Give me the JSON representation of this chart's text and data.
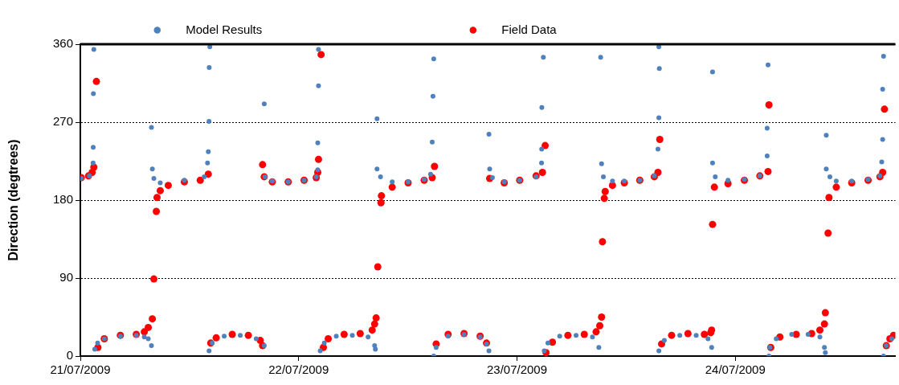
{
  "chart_data": {
    "type": "scatter",
    "ylabel": "Direction (degtrees)",
    "xlim": [
      "2009-07-21T00:00",
      "2009-07-24T17:36"
    ],
    "xticks": [
      {
        "value": "2009-07-21",
        "label": "21/07/2009"
      },
      {
        "value": "2009-07-22",
        "label": "22/07/2009"
      },
      {
        "value": "2009-07-23",
        "label": "23/07/2009"
      },
      {
        "value": "2009-07-24",
        "label": "24/07/2009"
      }
    ],
    "ylim": [
      0,
      360
    ],
    "yticks": [
      0,
      90,
      180,
      270,
      360
    ],
    "grid": "y",
    "legend": "top",
    "marker": "circle",
    "series": [
      {
        "name": "Model Results",
        "color": "#4f81bd",
        "x": [
          "2009-07-21T00:06",
          "2009-07-21T01:00",
          "2009-07-21T01:24",
          "2009-07-21T01:25",
          "2009-07-21T01:26",
          "2009-07-21T01:29",
          "2009-07-21T01:35",
          "2009-07-21T01:54",
          "2009-07-21T02:38",
          "2009-07-21T04:24",
          "2009-07-21T06:09",
          "2009-07-21T07:02",
          "2009-07-21T07:28",
          "2009-07-21T07:49",
          "2009-07-21T07:49",
          "2009-07-21T07:55",
          "2009-07-21T08:05",
          "2009-07-21T08:47",
          "2009-07-21T11:26",
          "2009-07-21T13:37",
          "2009-07-21T13:59",
          "2009-07-21T14:04",
          "2009-07-21T14:09",
          "2009-07-21T14:10",
          "2009-07-21T14:14",
          "2009-07-21T14:09",
          "2009-07-21T14:30",
          "2009-07-21T15:49",
          "2009-07-21T17:35",
          "2009-07-21T19:20",
          "2009-07-21T20:13",
          "2009-07-21T20:13",
          "2009-07-21T20:18",
          "2009-07-21T21:06",
          "2009-07-21T22:51",
          "2009-07-22T00:36",
          "2009-07-22T01:56",
          "2009-07-22T02:06",
          "2009-07-22T02:06",
          "2009-07-22T02:11",
          "2009-07-22T02:11",
          "2009-07-22T02:22",
          "2009-07-22T02:49",
          "2009-07-22T04:08",
          "2009-07-22T05:54",
          "2009-07-22T07:38",
          "2009-07-22T08:21",
          "2009-07-22T08:26",
          "2009-07-22T08:37",
          "2009-07-22T08:37",
          "2009-07-22T09:00",
          "2009-07-22T10:17",
          "2009-07-22T12:02",
          "2009-07-22T13:48",
          "2009-07-22T14:30",
          "2009-07-22T14:41",
          "2009-07-22T14:46",
          "2009-07-22T14:51",
          "2009-07-22T14:51",
          "2009-07-22T15:07",
          "2009-07-22T16:26",
          "2009-07-22T18:11",
          "2009-07-22T19:57",
          "2009-07-22T20:39",
          "2009-07-22T20:55",
          "2009-07-22T20:55",
          "2009-07-22T21:00",
          "2009-07-22T21:18",
          "2009-07-22T22:36",
          "2009-07-23T00:18",
          "2009-07-23T02:06",
          "2009-07-23T02:42",
          "2009-07-23T02:43",
          "2009-07-23T02:44",
          "2009-07-23T02:54",
          "2009-07-23T03:00",
          "2009-07-23T03:24",
          "2009-07-23T04:42",
          "2009-07-23T06:30",
          "2009-07-23T08:18",
          "2009-07-23T09:00",
          "2009-07-23T09:12",
          "2009-07-23T09:18",
          "2009-07-23T09:30",
          "2009-07-23T10:30",
          "2009-07-23T11:48",
          "2009-07-23T13:30",
          "2009-07-23T15:06",
          "2009-07-23T15:30",
          "2009-07-23T15:36",
          "2009-07-23T15:39",
          "2009-07-23T15:36",
          "2009-07-23T15:36",
          "2009-07-23T16:12",
          "2009-07-23T17:54",
          "2009-07-23T19:42",
          "2009-07-23T21:00",
          "2009-07-23T21:24",
          "2009-07-23T21:30",
          "2009-07-23T21:30",
          "2009-07-23T21:48",
          "2009-07-23T23:12",
          "2009-07-24T01:00",
          "2009-07-24T02:42",
          "2009-07-24T03:30",
          "2009-07-24T03:30",
          "2009-07-24T03:36",
          "2009-07-24T03:42",
          "2009-07-24T03:48",
          "2009-07-24T04:30",
          "2009-07-24T06:12",
          "2009-07-24T08:00",
          "2009-07-24T09:18",
          "2009-07-24T09:48",
          "2009-07-24T09:54",
          "2009-07-24T10:00",
          "2009-07-24T10:00",
          "2009-07-24T10:24",
          "2009-07-24T11:06",
          "2009-07-24T12:48",
          "2009-07-24T14:36",
          "2009-07-24T15:54",
          "2009-07-24T16:06",
          "2009-07-24T16:12",
          "2009-07-24T16:12",
          "2009-07-24T16:18",
          "2009-07-24T16:18",
          "2009-07-24T16:36",
          "2009-07-24T17:12"
        ],
        "values": [
          205,
          208,
          223,
          241,
          303,
          354,
          8,
          15,
          20,
          23,
          24,
          22,
          20,
          12,
          264,
          216,
          205,
          200,
          203,
          207,
          223,
          236,
          271,
          333,
          357,
          6,
          15,
          23,
          24,
          20,
          12,
          291,
          207,
          202,
          201,
          203,
          207,
          215,
          246,
          312,
          354,
          6,
          15,
          23,
          24,
          22,
          12,
          8,
          274,
          216,
          207,
          201,
          201,
          204,
          210,
          247,
          300,
          343,
          0,
          10,
          23,
          25,
          22,
          14,
          6,
          256,
          216,
          206,
          201,
          203,
          207,
          223,
          239,
          287,
          345,
          6,
          15,
          23,
          24,
          22,
          10,
          345,
          222,
          207,
          202,
          202,
          203,
          208,
          239,
          275,
          332,
          357,
          6,
          18,
          24,
          24,
          20,
          10,
          328,
          223,
          207,
          203,
          204,
          208,
          231,
          263,
          336,
          0,
          10,
          20,
          25,
          25,
          22,
          10,
          4,
          255,
          216,
          207,
          202,
          202,
          204,
          208,
          224,
          250,
          308,
          346,
          0,
          12,
          20
        ]
      },
      {
        "name": "Field Data",
        "color": "#ff0000",
        "x": [
          "2009-07-21T00:06",
          "2009-07-21T00:54",
          "2009-07-21T01:18",
          "2009-07-21T01:29",
          "2009-07-21T01:46",
          "2009-07-21T01:56",
          "2009-07-21T02:38",
          "2009-07-21T04:24",
          "2009-07-21T06:09",
          "2009-07-21T07:02",
          "2009-07-21T07:28",
          "2009-07-21T07:55",
          "2009-07-21T08:05",
          "2009-07-21T08:21",
          "2009-07-21T08:26",
          "2009-07-21T08:47",
          "2009-07-21T09:40",
          "2009-07-21T11:26",
          "2009-07-21T13:11",
          "2009-07-21T14:04",
          "2009-07-21T14:20",
          "2009-07-21T14:56",
          "2009-07-21T16:42",
          "2009-07-21T18:28",
          "2009-07-21T19:47",
          "2009-07-21T20:02",
          "2009-07-21T20:02",
          "2009-07-21T20:13",
          "2009-07-21T21:06",
          "2009-07-21T22:51",
          "2009-07-22T00:36",
          "2009-07-22T01:56",
          "2009-07-22T02:06",
          "2009-07-22T02:11",
          "2009-07-22T02:28",
          "2009-07-22T02:43",
          "2009-07-22T03:15",
          "2009-07-22T05:00",
          "2009-07-22T06:46",
          "2009-07-22T08:05",
          "2009-07-22T08:21",
          "2009-07-22T08:31",
          "2009-07-22T08:42",
          "2009-07-22T09:03",
          "2009-07-22T09:06",
          "2009-07-22T10:17",
          "2009-07-22T12:02",
          "2009-07-22T13:48",
          "2009-07-22T14:41",
          "2009-07-22T14:56",
          "2009-07-22T15:07",
          "2009-07-22T16:26",
          "2009-07-22T18:11",
          "2009-07-22T19:57",
          "2009-07-22T20:39",
          "2009-07-22T21:00",
          "2009-07-22T22:36",
          "2009-07-23T00:18",
          "2009-07-23T02:06",
          "2009-07-23T02:48",
          "2009-07-23T03:06",
          "2009-07-23T03:12",
          "2009-07-23T03:54",
          "2009-07-23T05:36",
          "2009-07-23T07:24",
          "2009-07-23T08:42",
          "2009-07-23T09:06",
          "2009-07-23T09:18",
          "2009-07-23T09:24",
          "2009-07-23T09:36",
          "2009-07-23T09:42",
          "2009-07-23T10:30",
          "2009-07-23T11:48",
          "2009-07-23T13:30",
          "2009-07-23T15:06",
          "2009-07-23T15:30",
          "2009-07-23T15:42",
          "2009-07-23T15:54",
          "2009-07-23T17:00",
          "2009-07-23T18:48",
          "2009-07-23T20:36",
          "2009-07-23T21:18",
          "2009-07-23T21:24",
          "2009-07-23T21:30",
          "2009-07-23T21:42",
          "2009-07-23T23:12",
          "2009-07-24T01:00",
          "2009-07-24T02:42",
          "2009-07-24T03:36",
          "2009-07-24T03:42",
          "2009-07-24T03:54",
          "2009-07-24T04:54",
          "2009-07-24T06:42",
          "2009-07-24T08:24",
          "2009-07-24T09:18",
          "2009-07-24T09:48",
          "2009-07-24T09:54",
          "2009-07-24T10:12",
          "2009-07-24T10:18",
          "2009-07-24T11:06",
          "2009-07-24T12:48",
          "2009-07-24T14:36",
          "2009-07-24T15:54",
          "2009-07-24T16:12",
          "2009-07-24T16:24",
          "2009-07-24T16:36",
          "2009-07-24T17:00",
          "2009-07-24T17:24"
        ],
        "values": [
          206,
          208,
          212,
          218,
          317,
          10,
          20,
          24,
          25,
          28,
          33,
          43,
          89,
          167,
          183,
          191,
          197,
          201,
          203,
          210,
          15,
          21,
          25,
          24,
          18,
          12,
          221,
          207,
          201,
          201,
          203,
          206,
          212,
          227,
          348,
          10,
          20,
          25,
          26,
          30,
          37,
          44,
          103,
          177,
          185,
          195,
          200,
          203,
          206,
          219,
          14,
          25,
          26,
          23,
          15,
          205,
          200,
          203,
          208,
          212,
          243,
          4,
          16,
          24,
          25,
          28,
          35,
          45,
          132,
          182,
          190,
          197,
          200,
          203,
          207,
          212,
          250,
          14,
          24,
          26,
          25,
          27,
          30,
          152,
          195,
          199,
          203,
          208,
          213,
          290,
          10,
          22,
          25,
          26,
          30,
          37,
          50,
          142,
          183,
          195,
          200,
          203,
          207,
          212,
          285,
          12,
          20,
          24
        ]
      }
    ]
  }
}
